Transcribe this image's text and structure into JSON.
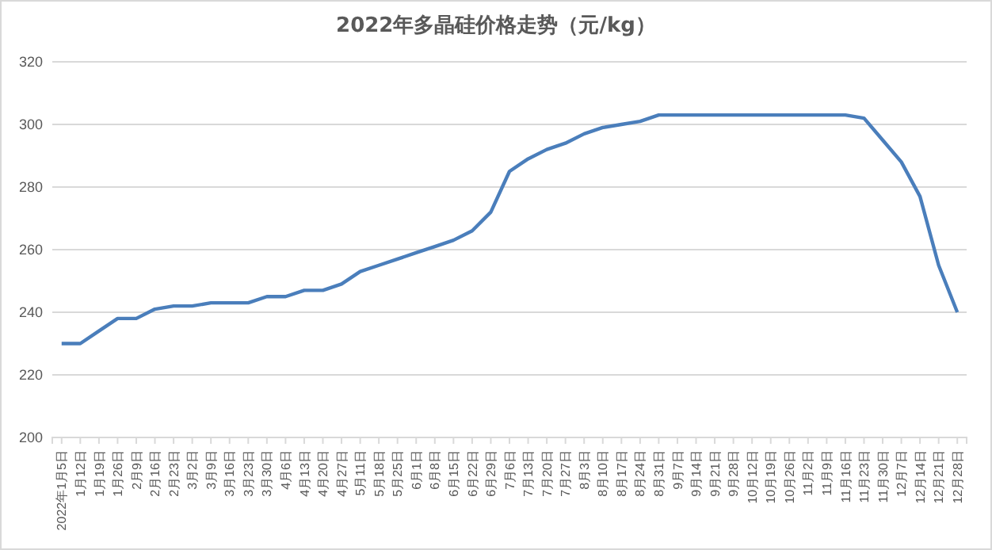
{
  "chart_data": {
    "type": "line",
    "title": "2022年多晶硅价格走势（元/kg）",
    "categories": [
      "2022年1月5日",
      "1月12日",
      "1月19日",
      "1月26日",
      "2月9日",
      "2月16日",
      "2月23日",
      "3月2日",
      "3月9日",
      "3月16日",
      "3月23日",
      "3月30日",
      "4月6日",
      "4月13日",
      "4月20日",
      "4月27日",
      "5月11日",
      "5月18日",
      "5月25日",
      "6月1日",
      "6月8日",
      "6月15日",
      "6月22日",
      "6月29日",
      "7月6日",
      "7月13日",
      "7月20日",
      "7月27日",
      "8月3日",
      "8月10日",
      "8月17日",
      "8月24日",
      "8月31日",
      "9月7日",
      "9月14日",
      "9月21日",
      "9月28日",
      "10月12日",
      "10月19日",
      "10月26日",
      "11月2日",
      "11月9日",
      "11月16日",
      "11月23日",
      "11月30日",
      "12月7日",
      "12月14日",
      "12月21日",
      "12月28日"
    ],
    "series": [
      {
        "color": "#4a7ebb",
        "values": [
          230,
          230,
          234,
          238,
          238,
          241,
          242,
          242,
          243,
          243,
          243,
          245,
          245,
          247,
          247,
          249,
          253,
          255,
          257,
          259,
          261,
          263,
          266,
          272,
          285,
          289,
          292,
          294,
          297,
          299,
          300,
          301,
          303,
          303,
          303,
          303,
          303,
          303,
          303,
          303,
          303,
          303,
          303,
          302,
          295,
          288,
          277,
          255,
          240
        ]
      }
    ],
    "ylim": [
      200,
      320
    ],
    "yticks": [
      200,
      220,
      240,
      260,
      280,
      300,
      320
    ],
    "grid": "y",
    "marker": "none",
    "line_style": "solid",
    "legend": false
  }
}
